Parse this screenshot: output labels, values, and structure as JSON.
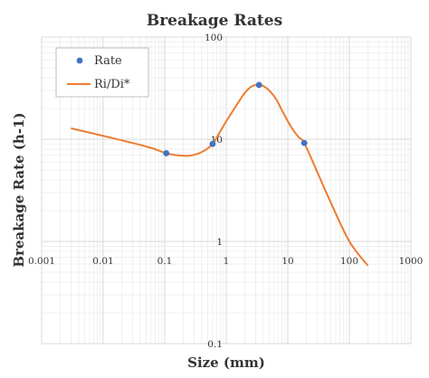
{
  "chart_data": {
    "type": "scatter",
    "title": "Breakage Rates",
    "xlabel": "Size (mm)",
    "ylabel": "Breakage Rate (h-1)",
    "ylabel_main": "Breakage Rate ",
    "ylabel_unit": "(h-1)",
    "x_scale": "log",
    "y_scale": "log",
    "xlim": [
      0.001,
      1000
    ],
    "ylim": [
      0.1,
      100
    ],
    "x_ticks": [
      0.001,
      0.01,
      0.1,
      1,
      10,
      100,
      1000
    ],
    "x_tick_labels": [
      "0.001",
      "0.01",
      "0.1",
      "1",
      "10",
      "100",
      "1000"
    ],
    "y_ticks": [
      0.1,
      1,
      10,
      100
    ],
    "y_tick_labels": [
      "0.1",
      "1",
      "10",
      "100"
    ],
    "grid": true,
    "legend_position": "top-left",
    "series": [
      {
        "name": "Rate",
        "kind": "markers",
        "color": "#4472C4",
        "x": [
          0.106,
          0.6,
          3.4,
          18.5
        ],
        "y": [
          7.3,
          9.0,
          34.0,
          9.2
        ]
      },
      {
        "name": "Ri/Di*",
        "kind": "line",
        "color": "#ED7D31",
        "x": [
          0.003,
          0.01,
          0.05,
          0.106,
          0.15,
          0.25,
          0.4,
          0.6,
          0.8,
          1.0,
          1.5,
          2.0,
          2.5,
          3.0,
          3.4,
          4.0,
          5.0,
          6.5,
          8.5,
          11.5,
          15.0,
          18.5,
          30.0,
          50.0,
          100.0,
          200.0
        ],
        "y": [
          12.8,
          10.8,
          8.5,
          7.3,
          7.0,
          6.9,
          7.5,
          9.0,
          12.0,
          15.0,
          22.0,
          28.5,
          32.5,
          34.0,
          34.0,
          33.2,
          30.0,
          24.5,
          18.0,
          13.0,
          10.5,
          9.2,
          4.8,
          2.4,
          1.0,
          0.58
        ]
      }
    ]
  }
}
